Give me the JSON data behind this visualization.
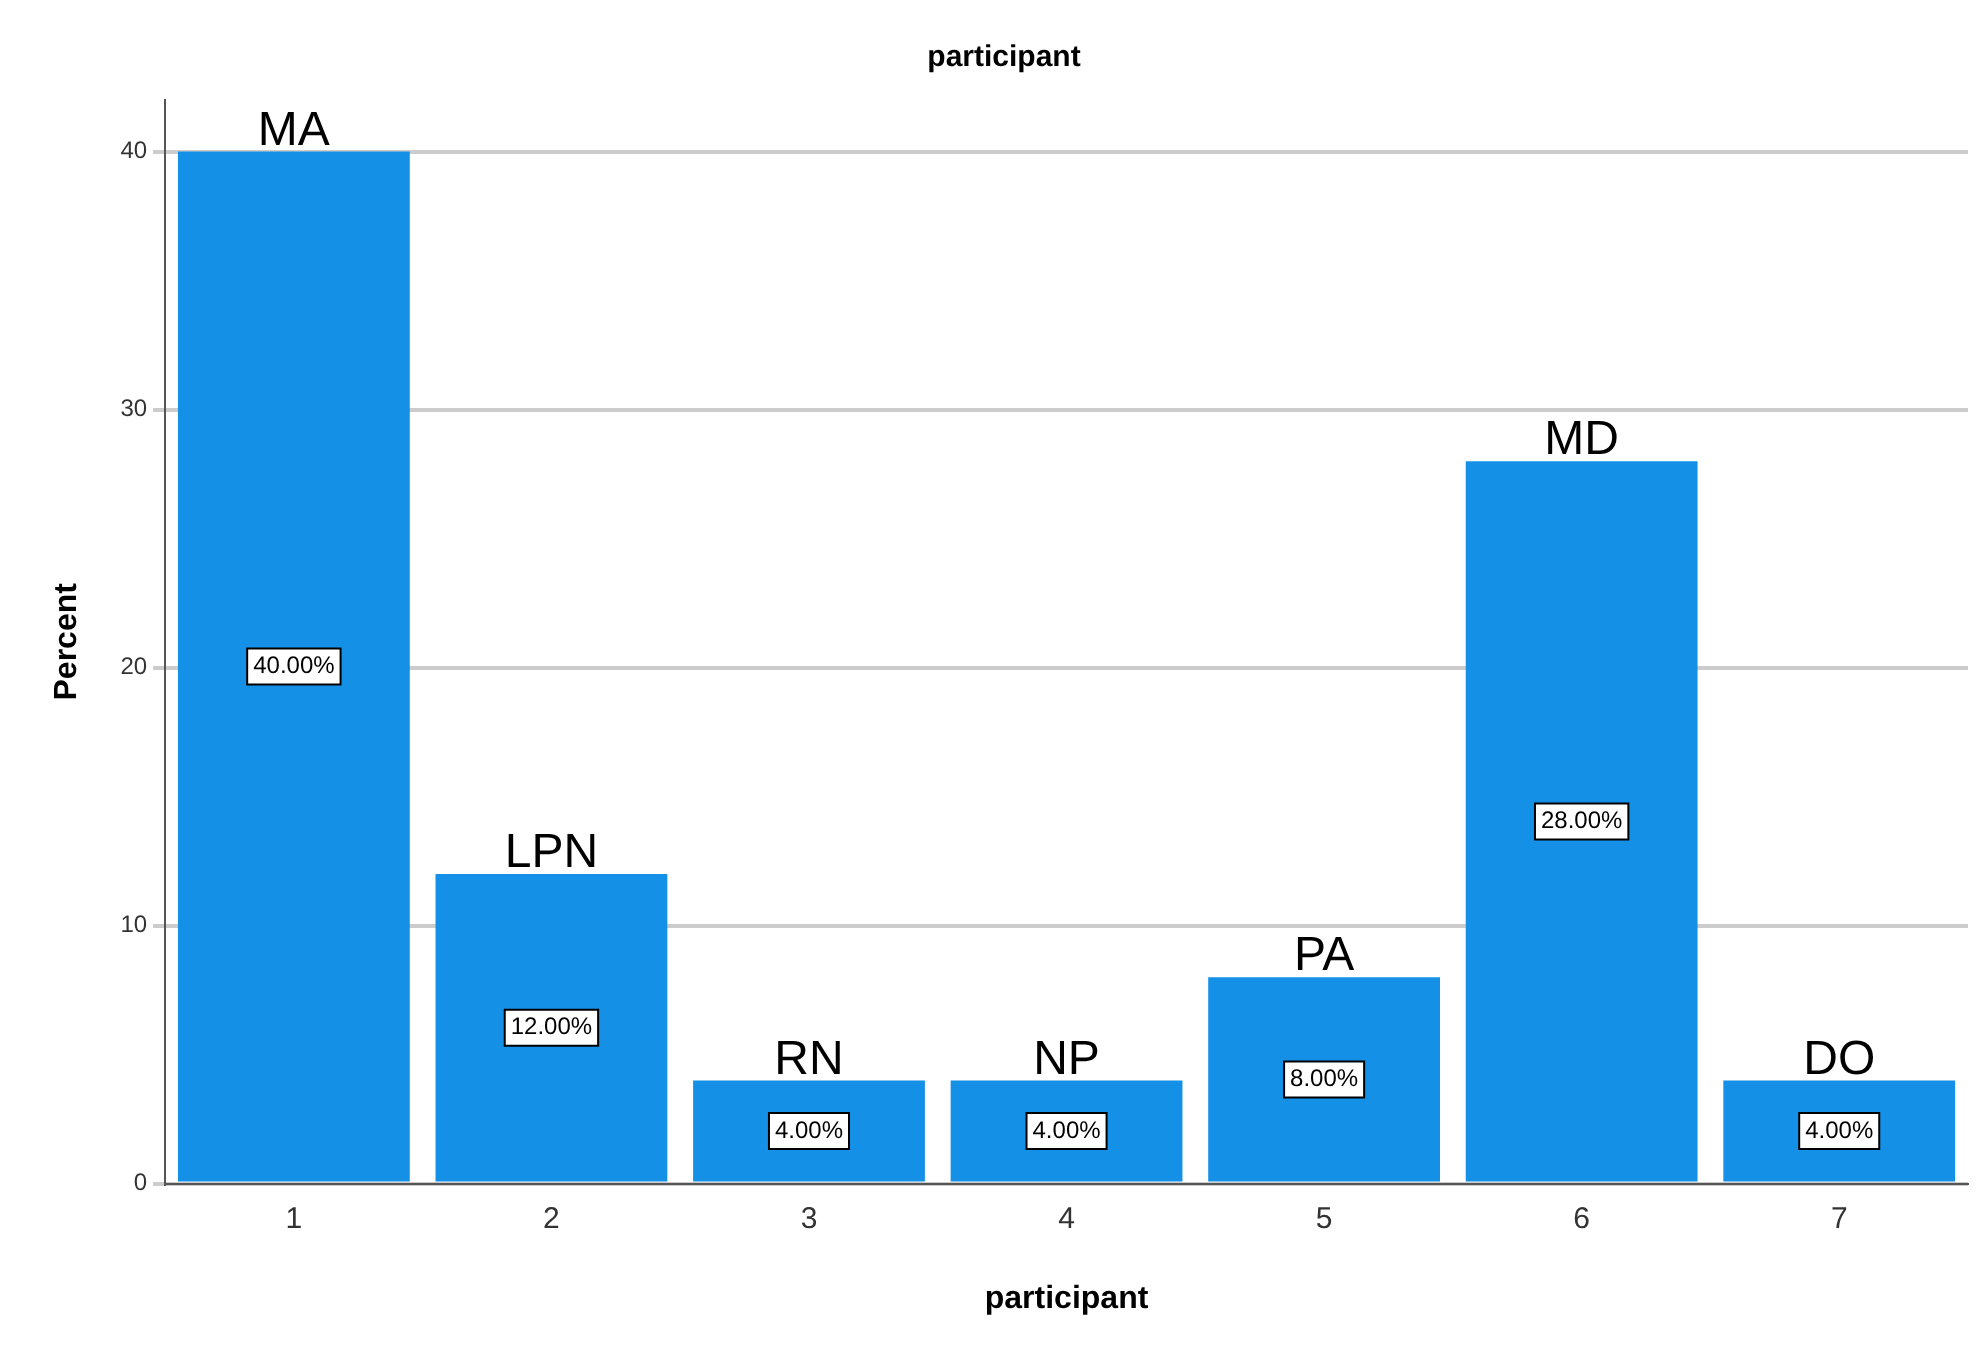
{
  "chart_data": {
    "type": "bar",
    "title": "participant",
    "xlabel": "participant",
    "ylabel": "Percent",
    "categories": [
      "1",
      "2",
      "3",
      "4",
      "5",
      "6",
      "7"
    ],
    "values": [
      40,
      12,
      4,
      4,
      8,
      28,
      4
    ],
    "color": "#1490e6",
    "value_labels": [
      "40.00%",
      "12.00%",
      "4.00%",
      "4.00%",
      "8.00%",
      "28.00%",
      "4.00%"
    ],
    "ylim": [
      0,
      42
    ],
    "yticks": [
      0,
      10,
      20,
      30,
      40
    ],
    "grid": "y",
    "legend": false,
    "annotations": [
      {
        "text": "MA",
        "x": "1",
        "y": 40
      },
      {
        "text": "LPN",
        "x": "2",
        "y": 12
      },
      {
        "text": "RN",
        "x": "3",
        "y": 4
      },
      {
        "text": "NP",
        "x": "4",
        "y": 4
      },
      {
        "text": "PA",
        "x": "5",
        "y": 8
      },
      {
        "text": "MD",
        "x": "6",
        "y": 28
      },
      {
        "text": "DO",
        "x": "7",
        "y": 4
      }
    ]
  }
}
